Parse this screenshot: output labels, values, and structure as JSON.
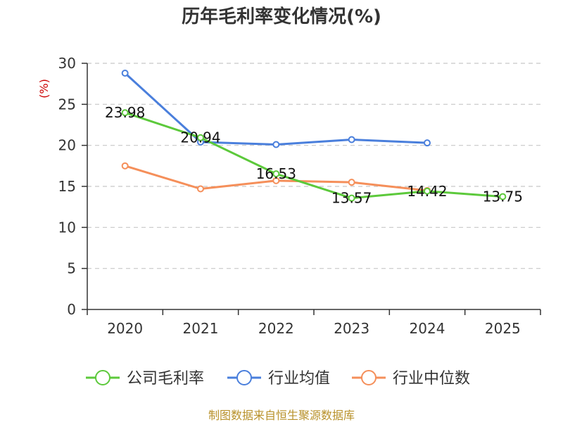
{
  "chart_data": {
    "type": "line",
    "title": "历年毛利率变化情况(%)",
    "ylabel": "(%)",
    "xlabel": "",
    "categories": [
      "2020",
      "2021",
      "2022",
      "2023",
      "2024",
      "2025"
    ],
    "ylim": [
      0,
      30
    ],
    "yticks": [
      0,
      5,
      10,
      15,
      20,
      25,
      30
    ],
    "grid": true,
    "legend_position": "bottom",
    "series": [
      {
        "name": "公司毛利率",
        "color": "#5cc93b",
        "values": [
          23.98,
          20.94,
          16.53,
          13.57,
          14.42,
          13.75
        ],
        "labels": [
          "23.98",
          "20.94",
          "16.53",
          "13.57",
          "14.42",
          "13.75"
        ]
      },
      {
        "name": "行业均值",
        "color": "#4a7fdc",
        "values": [
          28.8,
          20.4,
          20.1,
          20.7,
          20.3,
          null
        ]
      },
      {
        "name": "行业中位数",
        "color": "#f58f5a",
        "values": [
          17.5,
          14.7,
          15.7,
          15.5,
          14.5,
          null
        ]
      }
    ],
    "source": "制图数据来自恒生聚源数据库"
  }
}
